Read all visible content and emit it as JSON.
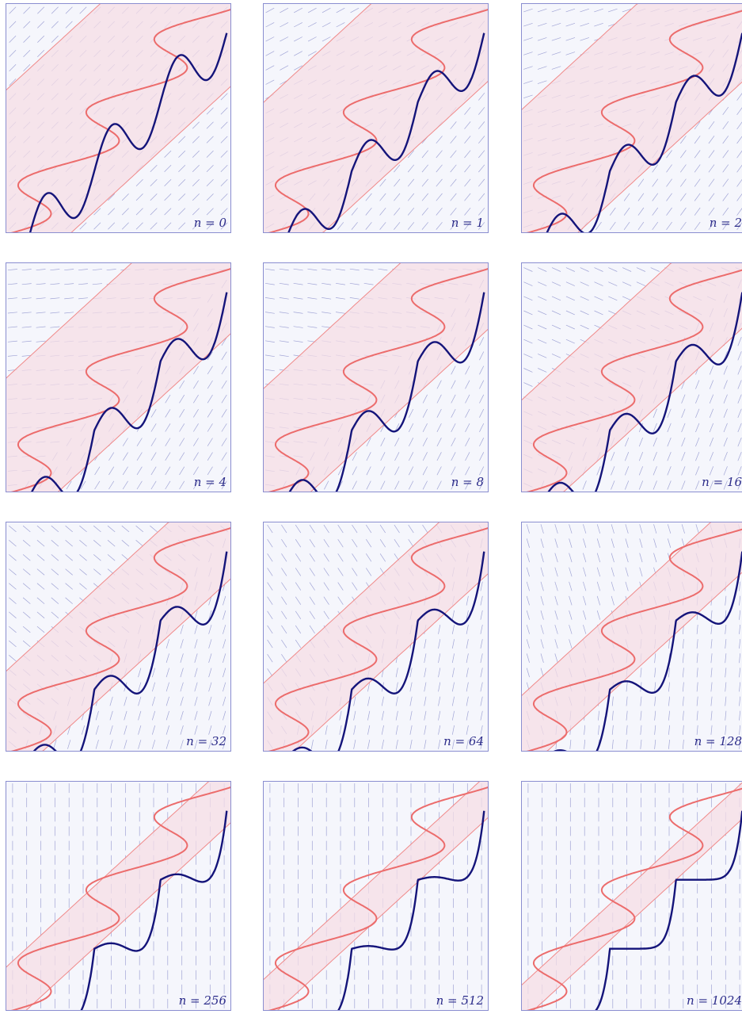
{
  "figure": {
    "description_colors": {
      "background": "#f5f6fc",
      "frame": "#8a8ed0",
      "vector_field": "#8c90cc",
      "band_fill": "#f6dde6",
      "band_edge": "#f08a8a",
      "sine_curve": "#ec6c6c",
      "trajectory": "#14147a"
    },
    "panels": [
      {
        "n": 0,
        "label": "n = 0"
      },
      {
        "n": 1,
        "label": "n = 1"
      },
      {
        "n": 2,
        "label": "n = 2"
      },
      {
        "n": 4,
        "label": "n = 4"
      },
      {
        "n": 8,
        "label": "n = 8"
      },
      {
        "n": 16,
        "label": "n = 16"
      },
      {
        "n": 32,
        "label": "n = 32"
      },
      {
        "n": 64,
        "label": "n = 64"
      },
      {
        "n": 128,
        "label": "n = 128"
      },
      {
        "n": 256,
        "label": "n = 256"
      },
      {
        "n": 512,
        "label": "n = 512"
      },
      {
        "n": 1024,
        "label": "n = 1024"
      }
    ]
  }
}
